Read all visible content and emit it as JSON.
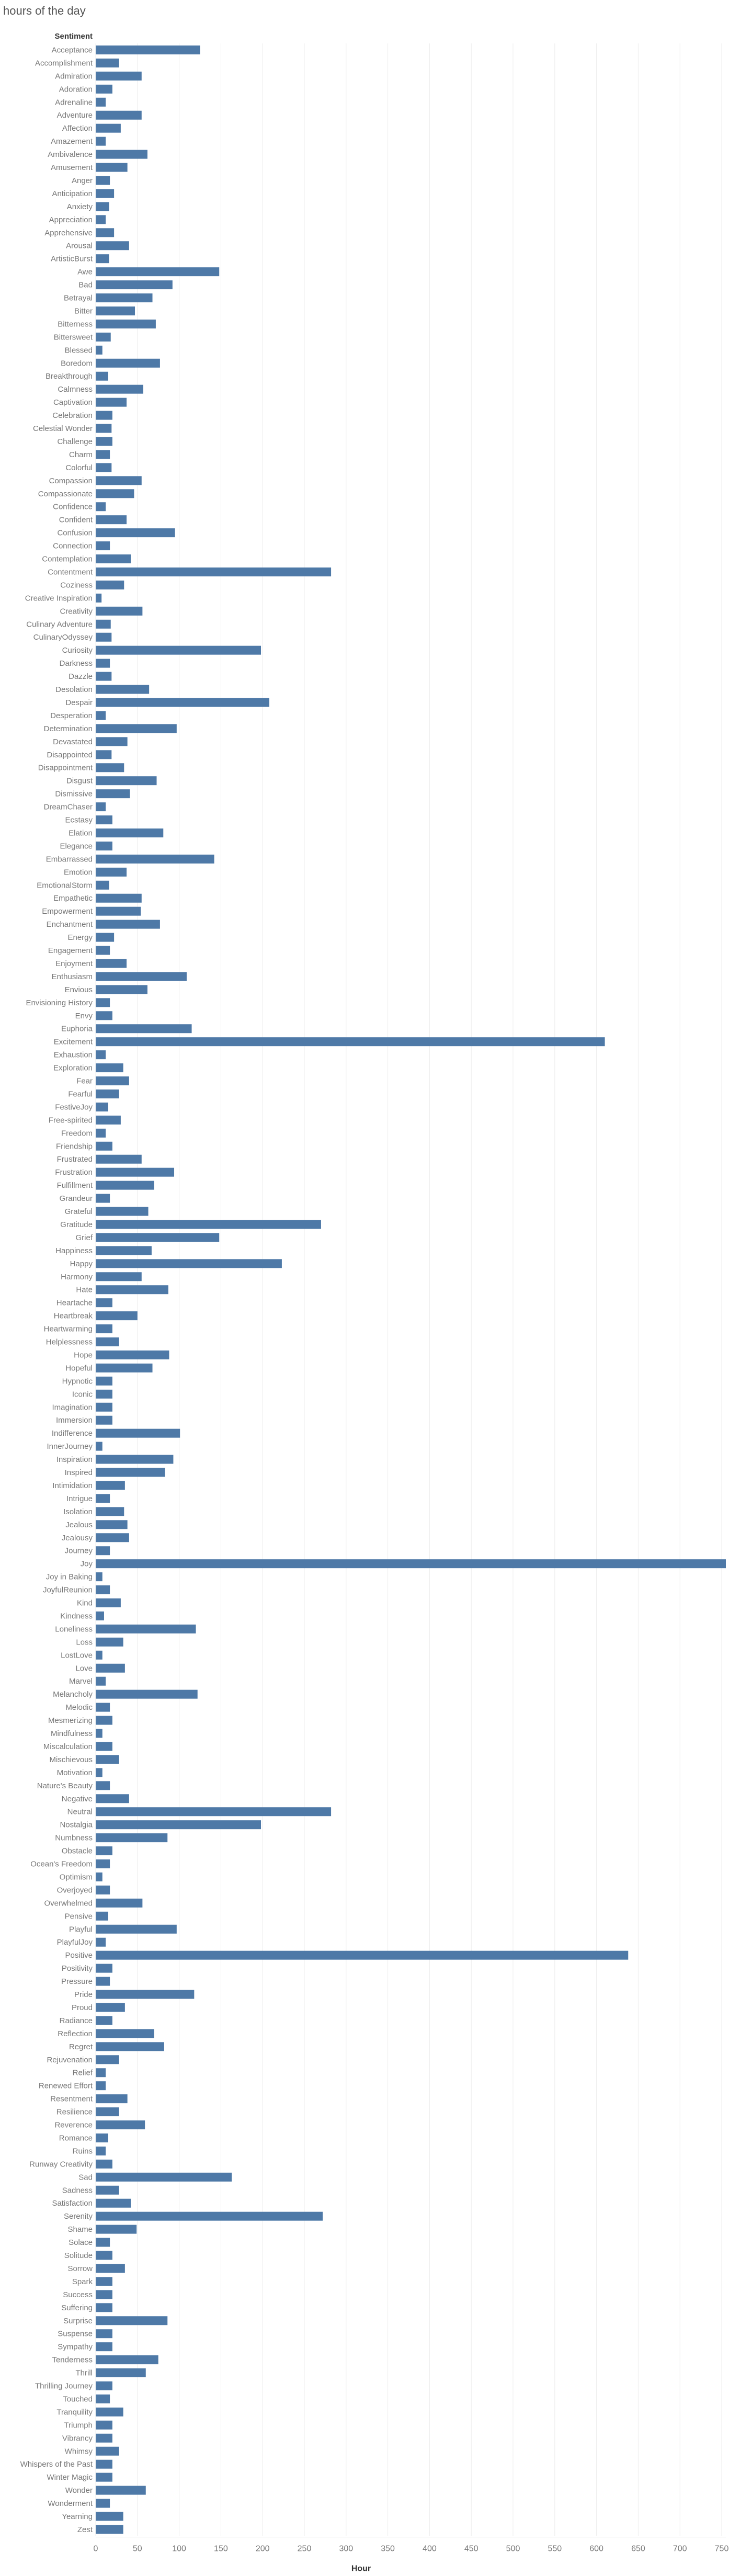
{
  "title": "hours of the day",
  "chart_data": {
    "type": "bar",
    "orientation": "horizontal",
    "title": "hours of the day",
    "row_header": "Sentiment",
    "xlabel": "Hour",
    "ylabel": "",
    "xlim": [
      0,
      755
    ],
    "xticks": [
      0,
      50,
      100,
      150,
      200,
      250,
      300,
      350,
      400,
      450,
      500,
      550,
      600,
      650,
      700,
      750
    ],
    "grid": true,
    "bar_color": "#4e79a7",
    "categories": [
      "Acceptance",
      "Accomplishment",
      "Admiration",
      "Adoration",
      "Adrenaline",
      "Adventure",
      "Affection",
      "Amazement",
      "Ambivalence",
      "Amusement",
      "Anger",
      "Anticipation",
      "Anxiety",
      "Appreciation",
      "Apprehensive",
      "Arousal",
      "ArtisticBurst",
      "Awe",
      "Bad",
      "Betrayal",
      "Bitter",
      "Bitterness",
      "Bittersweet",
      "Blessed",
      "Boredom",
      "Breakthrough",
      "Calmness",
      "Captivation",
      "Celebration",
      "Celestial Wonder",
      "Challenge",
      "Charm",
      "Colorful",
      "Compassion",
      "Compassionate",
      "Confidence",
      "Confident",
      "Confusion",
      "Connection",
      "Contemplation",
      "Contentment",
      "Coziness",
      "Creative Inspiration",
      "Creativity",
      "Culinary Adventure",
      "CulinaryOdyssey",
      "Curiosity",
      "Darkness",
      "Dazzle",
      "Desolation",
      "Despair",
      "Desperation",
      "Determination",
      "Devastated",
      "Disappointed",
      "Disappointment",
      "Disgust",
      "Dismissive",
      "DreamChaser",
      "Ecstasy",
      "Elation",
      "Elegance",
      "Embarrassed",
      "Emotion",
      "EmotionalStorm",
      "Empathetic",
      "Empowerment",
      "Enchantment",
      "Energy",
      "Engagement",
      "Enjoyment",
      "Enthusiasm",
      "Envious",
      "Envisioning History",
      "Envy",
      "Euphoria",
      "Excitement",
      "Exhaustion",
      "Exploration",
      "Fear",
      "Fearful",
      "FestiveJoy",
      "Free-spirited",
      "Freedom",
      "Friendship",
      "Frustrated",
      "Frustration",
      "Fulfillment",
      "Grandeur",
      "Grateful",
      "Gratitude",
      "Grief",
      "Happiness",
      "Happy",
      "Harmony",
      "Hate",
      "Heartache",
      "Heartbreak",
      "Heartwarming",
      "Helplessness",
      "Hope",
      "Hopeful",
      "Hypnotic",
      "Iconic",
      "Imagination",
      "Immersion",
      "Indifference",
      "InnerJourney",
      "Inspiration",
      "Inspired",
      "Intimidation",
      "Intrigue",
      "Isolation",
      "Jealous",
      "Jealousy",
      "Journey",
      "Joy",
      "Joy in Baking",
      "JoyfulReunion",
      "Kind",
      "Kindness",
      "Loneliness",
      "Loss",
      "LostLove",
      "Love",
      "Marvel",
      "Melancholy",
      "Melodic",
      "Mesmerizing",
      "Mindfulness",
      "Miscalculation",
      "Mischievous",
      "Motivation",
      "Nature's Beauty",
      "Negative",
      "Neutral",
      "Nostalgia",
      "Numbness",
      "Obstacle",
      "Ocean's Freedom",
      "Optimism",
      "Overjoyed",
      "Overwhelmed",
      "Pensive",
      "Playful",
      "PlayfulJoy",
      "Positive",
      "Positivity",
      "Pressure",
      "Pride",
      "Proud",
      "Radiance",
      "Reflection",
      "Regret",
      "Rejuvenation",
      "Relief",
      "Renewed Effort",
      "Resentment",
      "Resilience",
      "Reverence",
      "Romance",
      "Ruins",
      "Runway Creativity",
      "Sad",
      "Sadness",
      "Satisfaction",
      "Serenity",
      "Shame",
      "Solace",
      "Solitude",
      "Sorrow",
      "Spark",
      "Success",
      "Suffering",
      "Surprise",
      "Suspense",
      "Sympathy",
      "Tenderness",
      "Thrill",
      "Thrilling Journey",
      "Touched",
      "Tranquility",
      "Triumph",
      "Vibrancy",
      "Whimsy",
      "Whispers of the Past",
      "Winter Magic",
      "Wonder",
      "Wonderment",
      "Yearning",
      "Zest"
    ],
    "values": [
      125,
      28,
      55,
      20,
      12,
      55,
      30,
      12,
      62,
      38,
      17,
      22,
      16,
      12,
      22,
      40,
      16,
      148,
      92,
      68,
      47,
      72,
      18,
      8,
      77,
      15,
      57,
      37,
      20,
      19,
      20,
      17,
      19,
      55,
      46,
      12,
      37,
      95,
      17,
      42,
      282,
      34,
      7,
      56,
      18,
      19,
      198,
      17,
      19,
      64,
      208,
      12,
      97,
      38,
      19,
      34,
      73,
      41,
      12,
      20,
      81,
      20,
      142,
      37,
      16,
      55,
      54,
      77,
      22,
      17,
      37,
      109,
      62,
      17,
      20,
      115,
      610,
      12,
      33,
      40,
      28,
      15,
      30,
      12,
      20,
      55,
      94,
      70,
      17,
      63,
      270,
      148,
      67,
      223,
      55,
      87,
      20,
      50,
      20,
      28,
      88,
      68,
      20,
      20,
      20,
      20,
      101,
      8,
      93,
      83,
      35,
      17,
      34,
      38,
      40,
      17,
      755,
      8,
      17,
      30,
      10,
      120,
      33,
      8,
      35,
      12,
      122,
      17,
      20,
      8,
      20,
      28,
      8,
      17,
      40,
      282,
      198,
      86,
      20,
      17,
      8,
      17,
      56,
      15,
      97,
      12,
      638,
      20,
      17,
      118,
      35,
      20,
      70,
      82,
      28,
      12,
      12,
      38,
      28,
      59,
      15,
      12,
      20,
      163,
      28,
      42,
      272,
      49,
      17,
      20,
      35,
      20,
      20,
      20,
      86,
      20,
      20,
      75,
      60,
      20,
      17,
      33,
      20,
      20,
      28,
      20,
      20,
      60,
      17,
      33,
      33
    ]
  }
}
